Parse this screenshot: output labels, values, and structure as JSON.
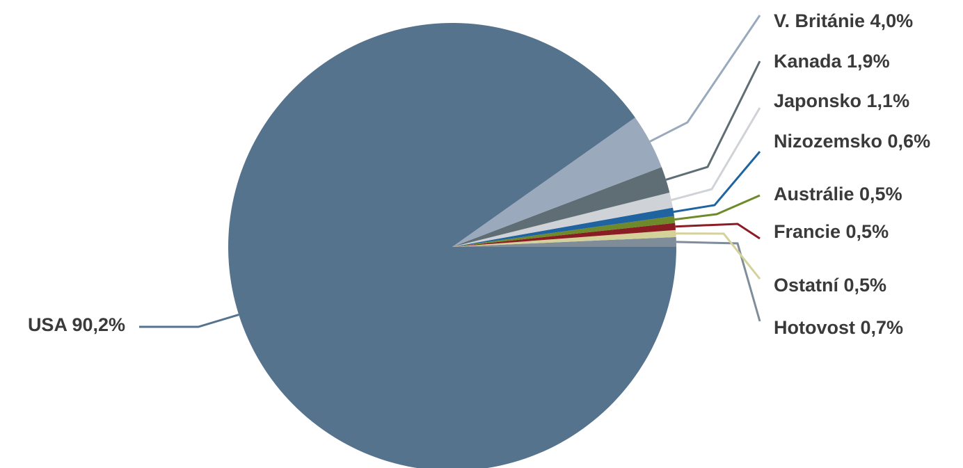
{
  "chart_data": {
    "type": "pie",
    "title": "",
    "slices": [
      {
        "name": "Hotovost",
        "value": 0.7,
        "label": "Hotovost 0,7%",
        "color": "#7e8d99"
      },
      {
        "name": "Ostatní",
        "value": 0.5,
        "label": "Ostatní 0,5%",
        "color": "#d4d19a"
      },
      {
        "name": "Francie",
        "value": 0.5,
        "label": "Francie 0,5%",
        "color": "#8a1d24"
      },
      {
        "name": "Austrálie",
        "value": 0.5,
        "label": "Austrálie 0,5%",
        "color": "#6f8a2a"
      },
      {
        "name": "Nizozemsko",
        "value": 0.6,
        "label": "Nizozemsko 0,6%",
        "color": "#1f64a0"
      },
      {
        "name": "Japonsko",
        "value": 1.1,
        "label": "Japonsko 1,1%",
        "color": "#cfd2d6"
      },
      {
        "name": "Kanada",
        "value": 1.9,
        "label": "Kanada 1,9%",
        "color": "#5f6e74"
      },
      {
        "name": "V. Británie",
        "value": 4.0,
        "label": "V. Británie 4,0%",
        "color": "#9aaabc"
      },
      {
        "name": "USA",
        "value": 90.2,
        "label": "USA 90,2%",
        "color": "#55738d"
      }
    ],
    "start_angle_deg": 0,
    "direction": "counterclockwise",
    "legend": "none",
    "label_style": "outside-with-leader-lines"
  }
}
